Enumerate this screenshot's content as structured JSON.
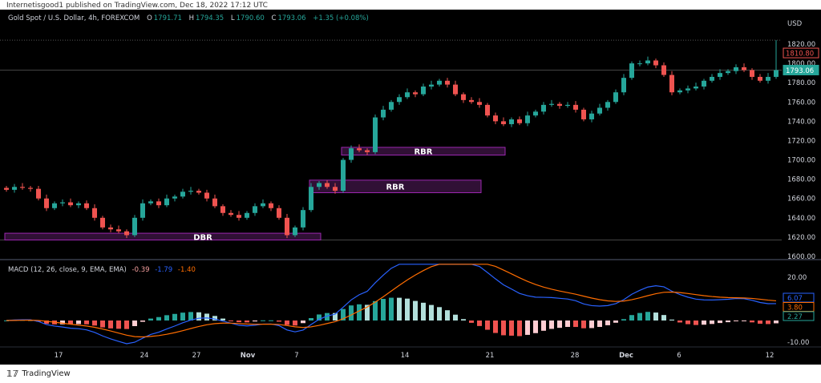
{
  "published": "Internetisgood1 published on TradingView.com, Dec 18, 2022 17:12 UTC",
  "legend": {
    "symbol": "Gold Spot / U.S. Dollar, 4h, FOREXCOM",
    "o_label": "O",
    "o": "1791.71",
    "h_label": "H",
    "h": "1794.35",
    "l_label": "L",
    "l": "1790.60",
    "c_label": "C",
    "c": "1793.06",
    "change": "+1.35 (+0.08%)"
  },
  "macd_legend": {
    "title": "MACD (12, 26, close, 9, EMA, EMA)",
    "hist": "-0.39",
    "macd": "-1.79",
    "signal": "-1.40"
  },
  "footer": {
    "brand": "TradingView"
  },
  "colors": {
    "up": "#26a69a",
    "down": "#ef5350",
    "macd": "#2962ff",
    "signal": "#ff6d00",
    "zone_fill": "#3c1442",
    "zone_border": "#9c27b0"
  },
  "chart_data": {
    "type": "candlestick",
    "currency": "USD",
    "price_axis": {
      "range": [
        1600,
        1830
      ],
      "ticks": [
        "1600.00",
        "1620.00",
        "1640.00",
        "1660.00",
        "1680.00",
        "1700.00",
        "1720.00",
        "1740.00",
        "1760.00",
        "1780.00",
        "1800.00",
        "1820.00"
      ]
    },
    "price_labels": {
      "crosshair": "1810.80",
      "last": "1793.06"
    },
    "time_ticks": [
      "17",
      "24",
      "27",
      "Nov",
      "7",
      "14",
      "21",
      "28",
      "Dec",
      "6",
      "12"
    ],
    "closes": [
      1669,
      1672,
      1671,
      1670,
      1660,
      1650,
      1655,
      1656,
      1653,
      1655,
      1650,
      1640,
      1630,
      1628,
      1626,
      1622,
      1640,
      1655,
      1657,
      1653,
      1660,
      1662,
      1667,
      1668,
      1666,
      1660,
      1652,
      1645,
      1643,
      1640,
      1645,
      1652,
      1655,
      1650,
      1640,
      1622,
      1630,
      1648,
      1672,
      1676,
      1672,
      1668,
      1700,
      1712,
      1710,
      1708,
      1744,
      1752,
      1760,
      1765,
      1770,
      1768,
      1776,
      1778,
      1782,
      1778,
      1768,
      1762,
      1760,
      1757,
      1746,
      1740,
      1737,
      1742,
      1738,
      1746,
      1750,
      1757,
      1758,
      1756,
      1757,
      1752,
      1742,
      1748,
      1754,
      1760,
      1770,
      1785,
      1800,
      1800,
      1803,
      1798,
      1788,
      1770,
      1772,
      1774,
      1776,
      1782,
      1786,
      1790,
      1792,
      1796,
      1793,
      1786,
      1782,
      1786,
      1793
    ],
    "last_high": 1824,
    "zones": [
      {
        "label": "DBR",
        "low": 1617,
        "high": 1624,
        "from_index": 0,
        "to_index": 39
      },
      {
        "label": "RBR",
        "low": 1666,
        "high": 1679,
        "from_index": 38,
        "to_index": 59
      },
      {
        "label": "RBR",
        "low": 1705,
        "high": 1713,
        "from_index": 42,
        "to_index": 62
      }
    ],
    "macd": {
      "fast": 12,
      "slow": 26,
      "signal": 9,
      "axis_ticks": [
        "20.00",
        "-10.00"
      ],
      "range": [
        -12,
        26
      ],
      "labels": {
        "macd": "6.07",
        "signal": "3.80",
        "hist": "2.27"
      }
    }
  }
}
